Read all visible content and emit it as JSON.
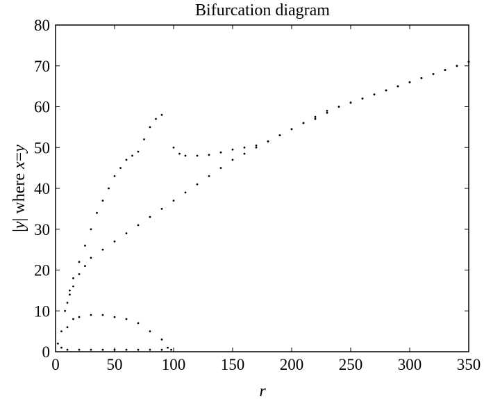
{
  "chart_data": {
    "type": "scatter",
    "title": "Bifurcation diagram",
    "xlabel": "r",
    "ylabel_parts": [
      "|",
      "y",
      "| where ",
      "x",
      "=",
      "y"
    ],
    "xlim": [
      0,
      350
    ],
    "ylim": [
      0,
      80
    ],
    "x_ticks": [
      "0",
      "50",
      "100",
      "150",
      "200",
      "250",
      "300",
      "350"
    ],
    "y_ticks": [
      "0",
      "10",
      "20",
      "30",
      "40",
      "50",
      "60",
      "70",
      "80"
    ],
    "grid": false,
    "marker_color": "#000000",
    "series": [
      {
        "points_r_y": [
          [
            2,
            2
          ],
          [
            5,
            5
          ],
          [
            8,
            10
          ],
          [
            10,
            12
          ],
          [
            12,
            14
          ],
          [
            15,
            16
          ],
          [
            20,
            19
          ],
          [
            25,
            21
          ],
          [
            30,
            23
          ],
          [
            40,
            25
          ],
          [
            50,
            27
          ],
          [
            60,
            29
          ],
          [
            70,
            31
          ],
          [
            80,
            33
          ],
          [
            90,
            35
          ],
          [
            100,
            37
          ],
          [
            110,
            39
          ],
          [
            120,
            41
          ],
          [
            130,
            43
          ],
          [
            140,
            45
          ],
          [
            150,
            47
          ],
          [
            160,
            48.5
          ],
          [
            170,
            50
          ],
          [
            180,
            51.5
          ],
          [
            190,
            53
          ],
          [
            200,
            54.5
          ],
          [
            210,
            56
          ],
          [
            220,
            57.5
          ],
          [
            230,
            58.5
          ],
          [
            240,
            60
          ],
          [
            250,
            61
          ],
          [
            260,
            62
          ],
          [
            270,
            63
          ],
          [
            280,
            64
          ],
          [
            290,
            65
          ],
          [
            300,
            66
          ],
          [
            310,
            67
          ],
          [
            320,
            68
          ],
          [
            330,
            69
          ],
          [
            340,
            70
          ],
          [
            350,
            71
          ]
        ]
      },
      {
        "points_r_y": [
          [
            12,
            15
          ],
          [
            15,
            18
          ],
          [
            20,
            22
          ],
          [
            25,
            26
          ],
          [
            30,
            30
          ],
          [
            35,
            34
          ],
          [
            40,
            37
          ],
          [
            45,
            40
          ],
          [
            50,
            43
          ],
          [
            55,
            45
          ],
          [
            60,
            47
          ],
          [
            65,
            48
          ],
          [
            70,
            49
          ],
          [
            75,
            52
          ],
          [
            80,
            55
          ],
          [
            85,
            57
          ],
          [
            90,
            58
          ]
        ]
      },
      {
        "points_r_y": [
          [
            100,
            50
          ],
          [
            105,
            48.5
          ],
          [
            110,
            48
          ],
          [
            120,
            48
          ],
          [
            130,
            48.2
          ],
          [
            140,
            48.8
          ],
          [
            150,
            49.5
          ],
          [
            160,
            50
          ],
          [
            170,
            50.5
          ],
          [
            180,
            51.5
          ],
          [
            190,
            53
          ],
          [
            200,
            54.5
          ],
          [
            210,
            56
          ],
          [
            220,
            57
          ],
          [
            230,
            59
          ],
          [
            240,
            60
          ],
          [
            250,
            61
          ],
          [
            260,
            62
          ],
          [
            270,
            63
          ],
          [
            280,
            64
          ],
          [
            290,
            65
          ],
          [
            300,
            66
          ],
          [
            310,
            67
          ],
          [
            320,
            68
          ],
          [
            330,
            69
          ],
          [
            340,
            70
          ],
          [
            350,
            71
          ]
        ]
      },
      {
        "points_r_y": [
          [
            5,
            1
          ],
          [
            10,
            6
          ],
          [
            15,
            8
          ],
          [
            20,
            8.5
          ],
          [
            30,
            9
          ],
          [
            40,
            9
          ],
          [
            50,
            8.5
          ],
          [
            60,
            8
          ],
          [
            70,
            7
          ],
          [
            80,
            5
          ],
          [
            90,
            3
          ],
          [
            95,
            1
          ]
        ]
      },
      {
        "points_r_y": [
          [
            10,
            0.5
          ],
          [
            20,
            0.5
          ],
          [
            30,
            0.5
          ],
          [
            40,
            0.5
          ],
          [
            50,
            0.5
          ],
          [
            60,
            0.5
          ],
          [
            70,
            0.5
          ],
          [
            80,
            0.5
          ],
          [
            90,
            0.5
          ],
          [
            98,
            0.5
          ]
        ]
      }
    ]
  }
}
